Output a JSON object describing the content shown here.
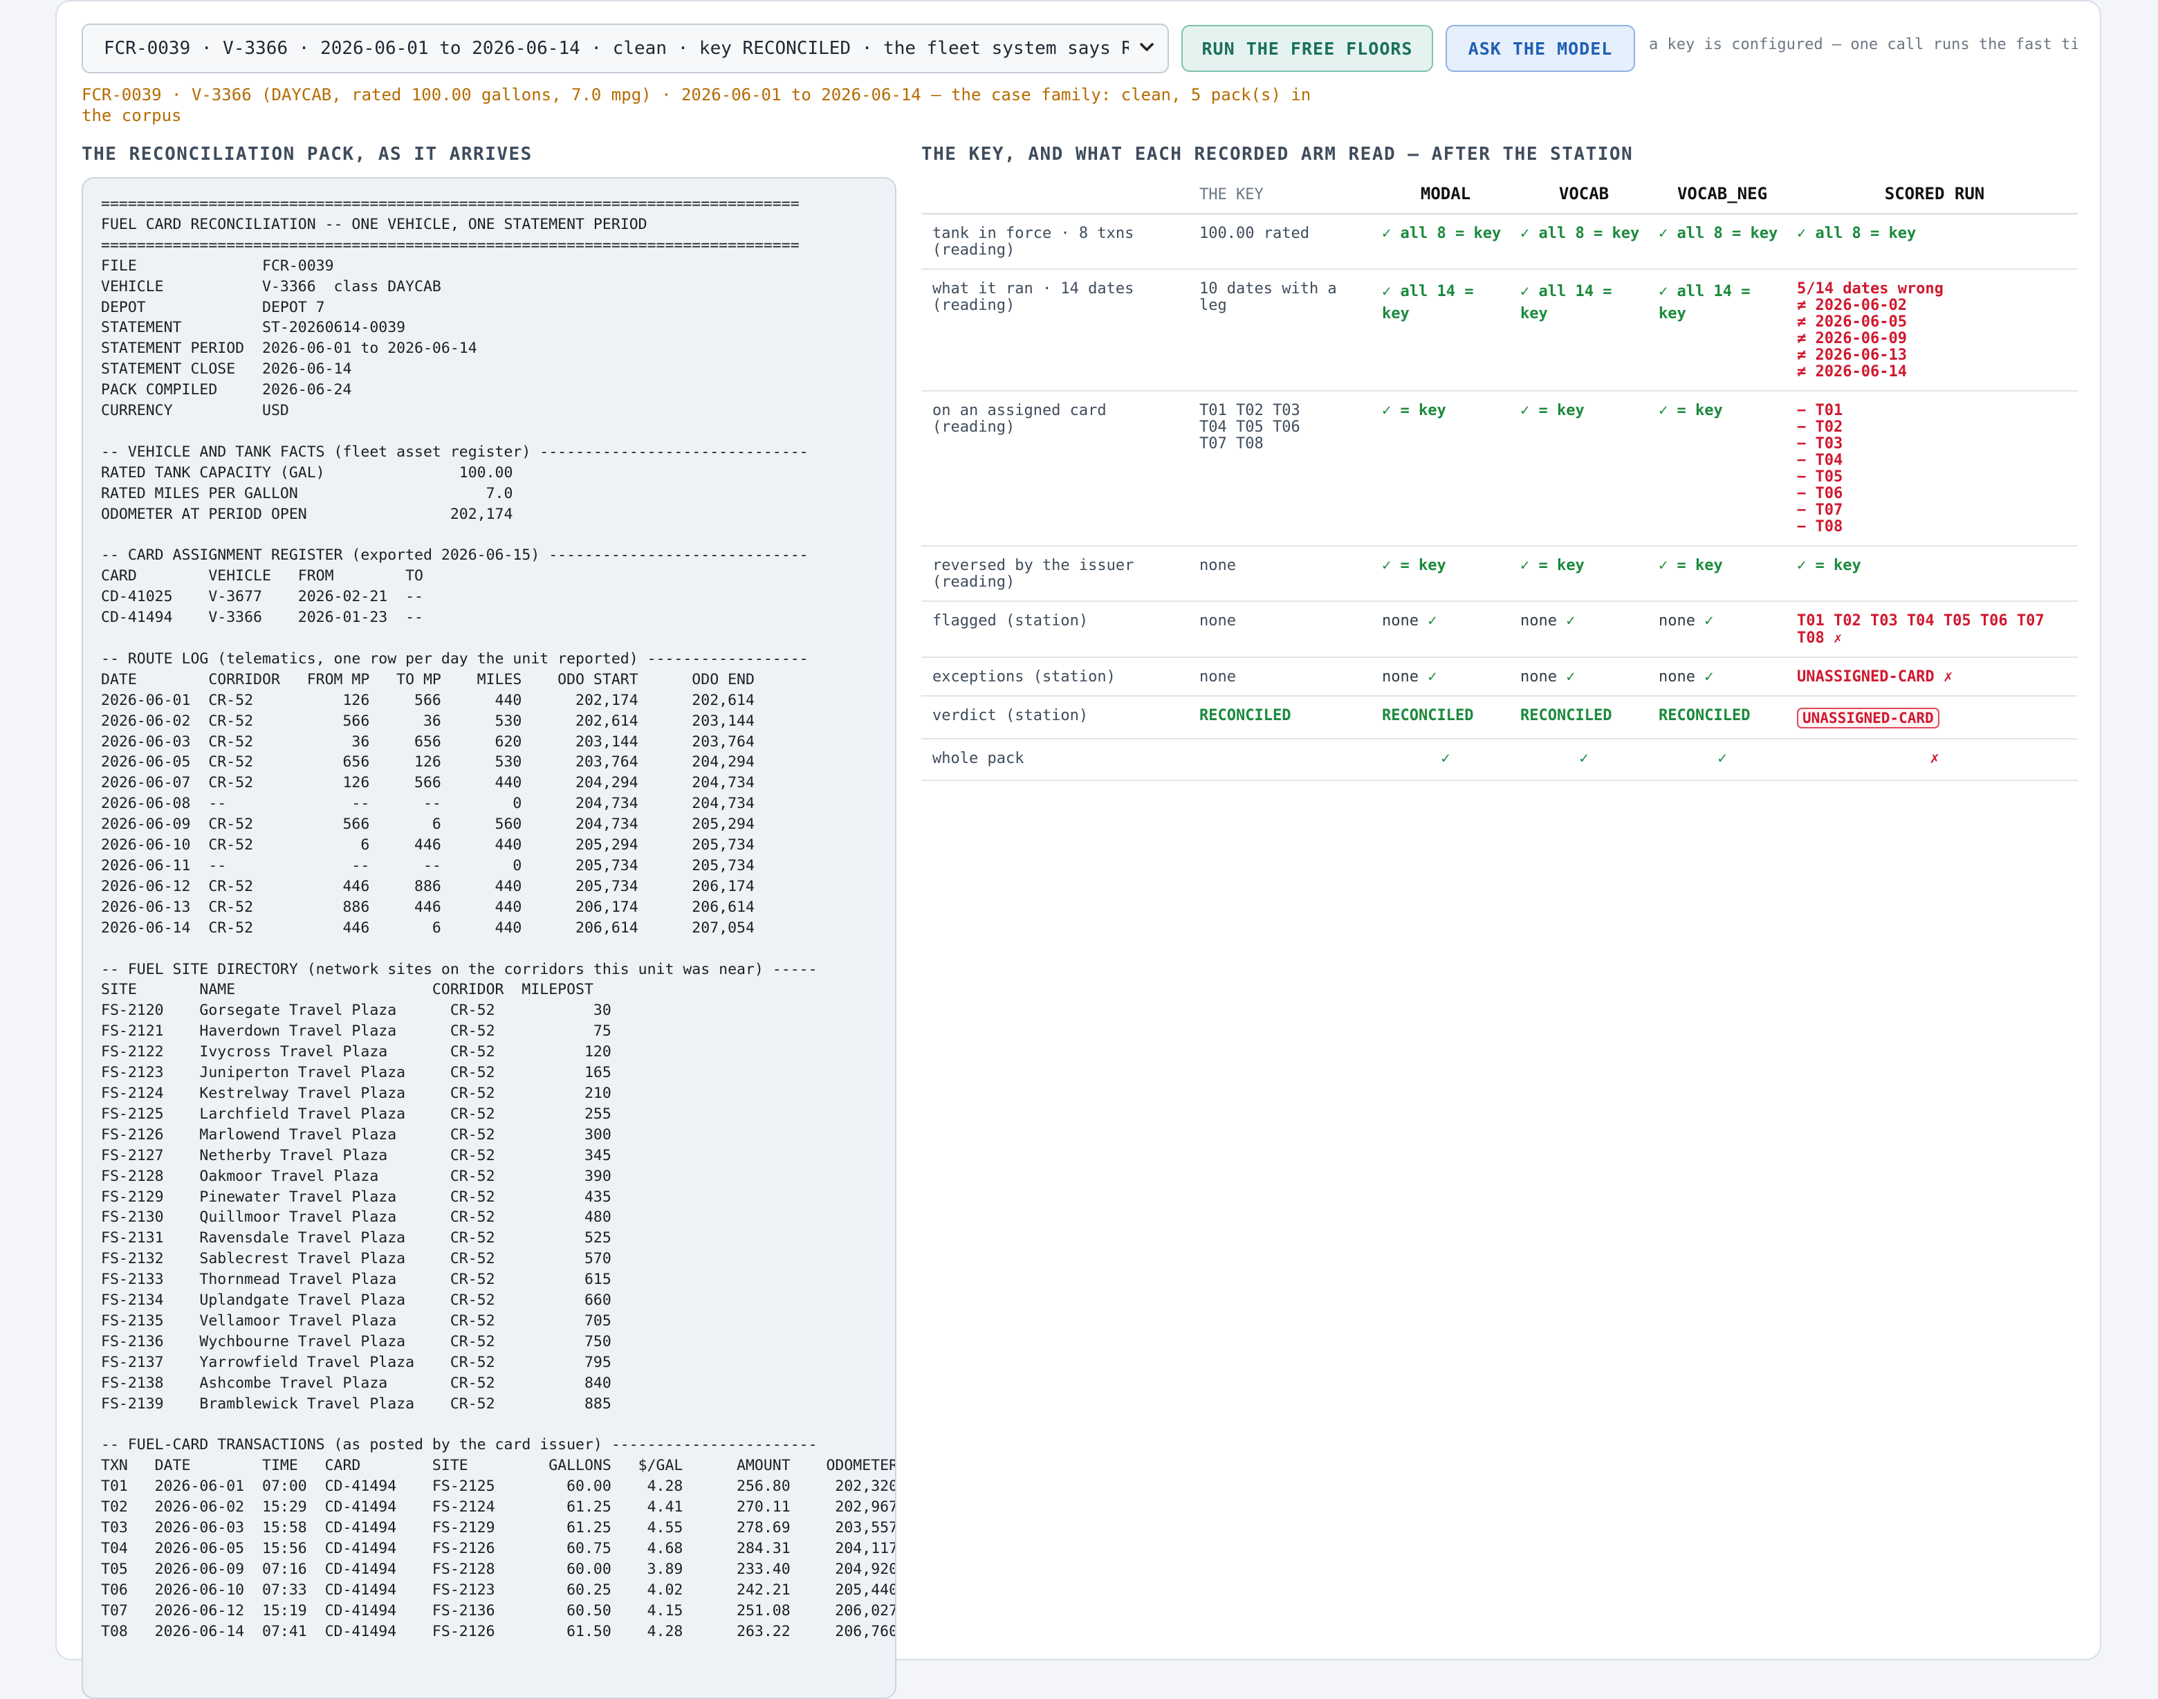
{
  "toolbar": {
    "case_select": "FCR-0039 · V-3366 · 2026-06-01 to 2026-06-14 · clean · key RECONCILED · the fleet system says RECONCILED",
    "run_floors": "RUN THE FREE FLOORS",
    "ask_model": "ASK THE MODEL",
    "hint": "a key is configured — one call runs the fast tier"
  },
  "case_line": "FCR-0039 · V-3366 (DAYCAB, rated 100.00 gallons, 7.0 mpg) · 2026-06-01 to 2026-06-14 — the case family: clean, 5 pack(s) in the corpus",
  "left_title": "THE RECONCILIATION PACK, AS IT ARRIVES",
  "right_title": "THE KEY, AND WHAT EACH RECORDED ARM READ — AFTER THE STATION",
  "pack_text": "==============================================================================\nFUEL CARD RECONCILIATION -- ONE VEHICLE, ONE STATEMENT PERIOD\n==============================================================================\nFILE              FCR-0039\nVEHICLE           V-3366  class DAYCAB\nDEPOT             DEPOT 7\nSTATEMENT         ST-20260614-0039\nSTATEMENT PERIOD  2026-06-01 to 2026-06-14\nSTATEMENT CLOSE   2026-06-14\nPACK COMPILED     2026-06-24\nCURRENCY          USD\n\n-- VEHICLE AND TANK FACTS (fleet asset register) ------------------------------\nRATED TANK CAPACITY (GAL)               100.00\nRATED MILES PER GALLON                     7.0\nODOMETER AT PERIOD OPEN                202,174\n\n-- CARD ASSIGNMENT REGISTER (exported 2026-06-15) -----------------------------\nCARD        VEHICLE   FROM        TO\nCD-41025    V-3677    2026-02-21  --\nCD-41494    V-3366    2026-01-23  --\n\n-- ROUTE LOG (telematics, one row per day the unit reported) ------------------\nDATE        CORRIDOR   FROM MP   TO MP    MILES    ODO START      ODO END\n2026-06-01  CR-52          126     566      440      202,174      202,614\n2026-06-02  CR-52          566      36      530      202,614      203,144\n2026-06-03  CR-52           36     656      620      203,144      203,764\n2026-06-05  CR-52          656     126      530      203,764      204,294\n2026-06-07  CR-52          126     566      440      204,294      204,734\n2026-06-08  --              --      --        0      204,734      204,734\n2026-06-09  CR-52          566       6      560      204,734      205,294\n2026-06-10  CR-52            6     446      440      205,294      205,734\n2026-06-11  --              --      --        0      205,734      205,734\n2026-06-12  CR-52          446     886      440      205,734      206,174\n2026-06-13  CR-52          886     446      440      206,174      206,614\n2026-06-14  CR-52          446       6      440      206,614      207,054\n\n-- FUEL SITE DIRECTORY (network sites on the corridors this unit was near) -----\nSITE       NAME                      CORRIDOR  MILEPOST\nFS-2120    Gorsegate Travel Plaza      CR-52           30\nFS-2121    Haverdown Travel Plaza      CR-52           75\nFS-2122    Ivycross Travel Plaza       CR-52          120\nFS-2123    Juniperton Travel Plaza     CR-52          165\nFS-2124    Kestrelway Travel Plaza     CR-52          210\nFS-2125    Larchfield Travel Plaza     CR-52          255\nFS-2126    Marlowend Travel Plaza      CR-52          300\nFS-2127    Netherby Travel Plaza       CR-52          345\nFS-2128    Oakmoor Travel Plaza        CR-52          390\nFS-2129    Pinewater Travel Plaza      CR-52          435\nFS-2130    Quillmoor Travel Plaza      CR-52          480\nFS-2131    Ravensdale Travel Plaza     CR-52          525\nFS-2132    Sablecrest Travel Plaza     CR-52          570\nFS-2133    Thornmead Travel Plaza      CR-52          615\nFS-2134    Uplandgate Travel Plaza     CR-52          660\nFS-2135    Vellamoor Travel Plaza      CR-52          705\nFS-2136    Wychbourne Travel Plaza     CR-52          750\nFS-2137    Yarrowfield Travel Plaza    CR-52          795\nFS-2138    Ashcombe Travel Plaza       CR-52          840\nFS-2139    Bramblewick Travel Plaza    CR-52          885\n\n-- FUEL-CARD TRANSACTIONS (as posted by the card issuer) -----------------------\nTXN   DATE        TIME   CARD        SITE         GALLONS   $/GAL      AMOUNT    ODOMETER\nT01   2026-06-01  07:00  CD-41494    FS-2125        60.00    4.28      256.80     202,320\nT02   2026-06-02  15:29  CD-41494    FS-2124        61.25    4.41      270.11     202,967\nT03   2026-06-03  15:58  CD-41494    FS-2129        61.25    4.55      278.69     203,557\nT04   2026-06-05  15:56  CD-41494    FS-2126        60.75    4.68      284.31     204,117\nT05   2026-06-09  07:16  CD-41494    FS-2128        60.00    3.89      233.40     204,920\nT06   2026-06-10  07:33  CD-41494    FS-2123        60.25    4.02      242.21     205,440\nT07   2026-06-12  15:19  CD-41494    FS-2136        60.50    4.15      251.08     206,027\nT08   2026-06-14  07:41  CD-41494    FS-2126        61.50    4.28      263.22     206,760",
  "table": {
    "headers": {
      "key": "THE KEY",
      "modal": "MODAL",
      "vocab": "VOCAB",
      "vocab_neg": "VOCAB_NEG",
      "scored": "SCORED RUN"
    },
    "rows": {
      "tank": {
        "label": "tank in force · 8 txns (reading)",
        "key": "100.00 rated",
        "modal": "✓ all 8 = key",
        "vocab": "✓ all 8 = key",
        "vocab_neg": "✓ all 8 = key",
        "scored": "✓ all 8 = key"
      },
      "ran": {
        "label": "what it ran · 14 dates (reading)",
        "key": "10 dates with a leg",
        "modal": "✓ all 14 = key",
        "vocab": "✓ all 14 = key",
        "vocab_neg": "✓ all 14 = key",
        "scored_head": "5/14 dates wrong",
        "scored_list": [
          "≠ 2026-06-02",
          "≠ 2026-06-05",
          "≠ 2026-06-09",
          "≠ 2026-06-13",
          "≠ 2026-06-14"
        ]
      },
      "card": {
        "label": "on an assigned card (reading)",
        "key": "T01 T02 T03 T04 T05 T06 T07 T08",
        "modal": "✓ = key",
        "vocab": "✓ = key",
        "vocab_neg": "✓ = key",
        "scored_list": [
          "− T01",
          "− T02",
          "− T03",
          "− T04",
          "− T05",
          "− T06",
          "− T07",
          "− T08"
        ]
      },
      "reversed": {
        "label": "reversed by the issuer (reading)",
        "key": "none",
        "modal": "✓ = key",
        "vocab": "✓ = key",
        "vocab_neg": "✓ = key",
        "scored": "✓ = key"
      },
      "flagged": {
        "label": "flagged (station)",
        "key": "none",
        "modal": "none",
        "vocab": "none",
        "vocab_neg": "none",
        "scored": "T01 T02 T03 T04 T05 T06 T07 T08"
      },
      "exceptions": {
        "label": "exceptions (station)",
        "key": "none",
        "modal": "none",
        "vocab": "none",
        "vocab_neg": "none",
        "scored": "UNASSIGNED-CARD"
      },
      "verdict": {
        "label": "verdict (station)",
        "key": "RECONCILED",
        "modal": "RECONCILED",
        "vocab": "RECONCILED",
        "vocab_neg": "RECONCILED",
        "scored": "UNASSIGNED-CARD"
      },
      "whole": {
        "label": "whole pack",
        "modal": "✓",
        "vocab": "✓",
        "vocab_neg": "✓",
        "scored": "✗"
      }
    },
    "tick": "✓",
    "cross": "✗"
  },
  "colors": {
    "ok": "#1a8a3c",
    "bad": "#d0182e",
    "accent": "#1f5fb4",
    "caseline": "#b56b00"
  }
}
